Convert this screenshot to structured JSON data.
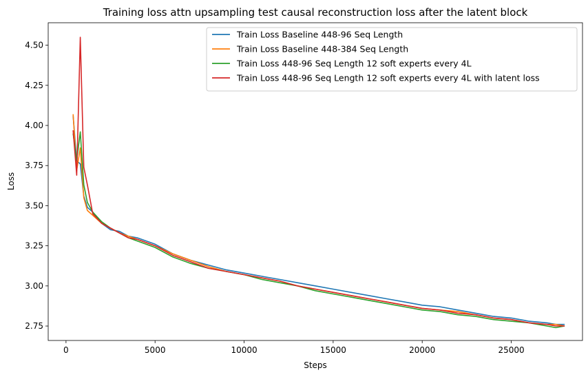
{
  "chart_data": {
    "type": "line",
    "title": "Training loss attn upsampling test causal reconstruction loss after the latent block",
    "xlabel": "Steps",
    "ylabel": "Loss",
    "xlim": [
      -1000,
      29000
    ],
    "ylim": [
      2.66,
      4.64
    ],
    "x_ticks": [
      0,
      5000,
      10000,
      15000,
      20000,
      25000
    ],
    "y_ticks": [
      2.75,
      3.0,
      3.25,
      3.5,
      3.75,
      4.0,
      4.25,
      4.5
    ],
    "x_tick_labels": [
      "0",
      "5000",
      "10000",
      "15000",
      "20000",
      "25000"
    ],
    "y_tick_labels": [
      "2.75",
      "3.00",
      "3.25",
      "3.50",
      "3.75",
      "4.00",
      "4.25",
      "4.50"
    ],
    "grid": false,
    "legend_position": "top-right",
    "x": [
      400,
      600,
      800,
      1000,
      1200,
      1500,
      2000,
      2500,
      3000,
      3500,
      4000,
      5000,
      6000,
      7000,
      8000,
      9000,
      10000,
      11000,
      12000,
      13000,
      14000,
      15000,
      16000,
      17000,
      18000,
      19000,
      20000,
      21000,
      22000,
      23000,
      24000,
      25000,
      26000,
      27000,
      27500,
      28000
    ],
    "series": [
      {
        "name": "Train Loss Baseline 448-96 Seq Length",
        "color": "#1f77b4",
        "values": [
          4.06,
          3.78,
          3.76,
          3.56,
          3.49,
          3.46,
          3.39,
          3.35,
          3.34,
          3.31,
          3.3,
          3.26,
          3.2,
          3.16,
          3.13,
          3.1,
          3.08,
          3.06,
          3.04,
          3.02,
          3.0,
          2.98,
          2.96,
          2.94,
          2.92,
          2.9,
          2.88,
          2.87,
          2.85,
          2.83,
          2.81,
          2.8,
          2.78,
          2.77,
          2.76,
          2.76
        ]
      },
      {
        "name": "Train Loss Baseline 448-384 Seq Length",
        "color": "#ff7f0e",
        "values": [
          4.07,
          3.72,
          3.86,
          3.55,
          3.47,
          3.44,
          3.39,
          3.36,
          3.33,
          3.31,
          3.29,
          3.25,
          3.2,
          3.16,
          3.12,
          3.09,
          3.07,
          3.05,
          3.03,
          3.0,
          2.98,
          2.96,
          2.94,
          2.92,
          2.9,
          2.88,
          2.86,
          2.85,
          2.84,
          2.82,
          2.8,
          2.79,
          2.77,
          2.76,
          2.76,
          2.75
        ]
      },
      {
        "name": "Train Loss 448-96 Seq Length 12 soft experts every 4L",
        "color": "#2ca02c",
        "values": [
          3.95,
          3.78,
          3.96,
          3.63,
          3.52,
          3.46,
          3.4,
          3.36,
          3.33,
          3.3,
          3.28,
          3.24,
          3.18,
          3.14,
          3.11,
          3.09,
          3.07,
          3.04,
          3.02,
          3.0,
          2.97,
          2.95,
          2.93,
          2.91,
          2.89,
          2.87,
          2.85,
          2.84,
          2.82,
          2.81,
          2.79,
          2.78,
          2.77,
          2.75,
          2.74,
          2.75
        ]
      },
      {
        "name": "Train Loss 448-96 Seq Length 12 soft experts every 4L with latent loss",
        "color": "#d62728",
        "values": [
          3.97,
          3.69,
          4.55,
          3.74,
          3.63,
          3.45,
          3.39,
          3.36,
          3.33,
          3.3,
          3.29,
          3.25,
          3.19,
          3.15,
          3.11,
          3.09,
          3.07,
          3.05,
          3.03,
          3.0,
          2.98,
          2.96,
          2.94,
          2.92,
          2.9,
          2.88,
          2.86,
          2.85,
          2.83,
          2.82,
          2.8,
          2.79,
          2.77,
          2.76,
          2.75,
          2.75
        ]
      }
    ]
  }
}
